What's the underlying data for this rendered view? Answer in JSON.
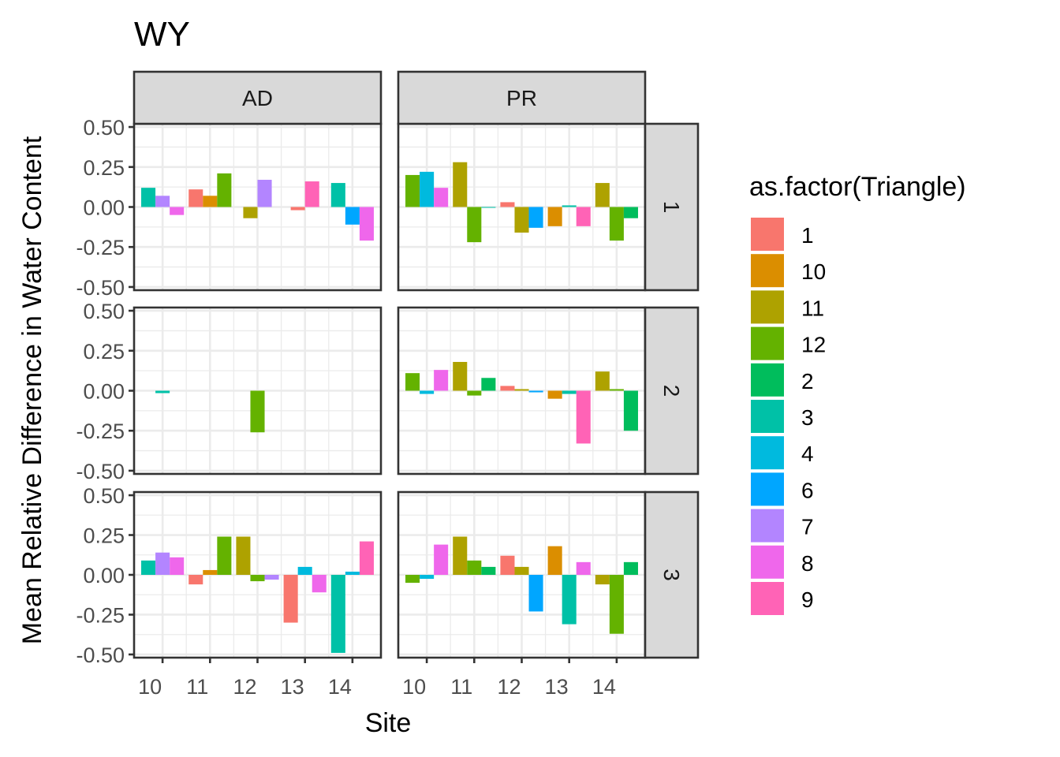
{
  "chart_data": {
    "type": "bar",
    "title": "WY",
    "xlabel": "Site",
    "ylabel": "Mean Relative Difference in Water Content",
    "ylim": [
      -0.52,
      0.52
    ],
    "yticks": [
      "-0.50",
      "-0.25",
      "0.00",
      "0.25",
      "0.50"
    ],
    "ytick_values": [
      -0.5,
      -0.25,
      0,
      0.25,
      0.5
    ],
    "xticks": [
      "10",
      "11",
      "12",
      "13",
      "14"
    ],
    "grid": true,
    "legend_title": "as.factor(Triangle)",
    "legend_position": "right",
    "legend": [
      {
        "key": "1",
        "color": "#F8766D"
      },
      {
        "key": "10",
        "color": "#DB8E00"
      },
      {
        "key": "11",
        "color": "#AEA200"
      },
      {
        "key": "12",
        "color": "#64B200"
      },
      {
        "key": "2",
        "color": "#00BD5C"
      },
      {
        "key": "3",
        "color": "#00C1A7"
      },
      {
        "key": "4",
        "color": "#00BADE"
      },
      {
        "key": "6",
        "color": "#00A6FF"
      },
      {
        "key": "7",
        "color": "#B385FF"
      },
      {
        "key": "8",
        "color": "#EF67EB"
      },
      {
        "key": "9",
        "color": "#FF63B6"
      }
    ],
    "facet_columns": [
      "AD",
      "PR"
    ],
    "facet_rows": [
      "1",
      "2",
      "3"
    ],
    "panels": [
      {
        "col": "AD",
        "row": "1",
        "sites": [
          {
            "site": "10",
            "bars": [
              {
                "tri": "3",
                "v": 0.12
              },
              {
                "tri": "7",
                "v": 0.07
              },
              {
                "tri": "8",
                "v": -0.05
              }
            ]
          },
          {
            "site": "11",
            "bars": [
              {
                "tri": "1",
                "v": 0.11
              },
              {
                "tri": "10",
                "v": 0.07
              },
              {
                "tri": "12",
                "v": 0.21
              }
            ]
          },
          {
            "site": "12",
            "bars": [
              {
                "tri": "11",
                "v": -0.07
              },
              {
                "tri": "7",
                "v": 0.17
              }
            ]
          },
          {
            "site": "13",
            "bars": [
              {
                "tri": "1",
                "v": -0.02
              },
              {
                "tri": "9",
                "v": 0.16
              }
            ]
          },
          {
            "site": "14",
            "bars": [
              {
                "tri": "3",
                "v": 0.15
              },
              {
                "tri": "6",
                "v": -0.11
              },
              {
                "tri": "8",
                "v": -0.21
              }
            ]
          }
        ]
      },
      {
        "col": "PR",
        "row": "1",
        "sites": [
          {
            "site": "10",
            "bars": [
              {
                "tri": "12",
                "v": 0.2
              },
              {
                "tri": "4",
                "v": 0.22
              },
              {
                "tri": "8",
                "v": 0.12
              }
            ]
          },
          {
            "site": "11",
            "bars": [
              {
                "tri": "11",
                "v": 0.28
              },
              {
                "tri": "12",
                "v": -0.22
              },
              {
                "tri": "3",
                "v": -0.005
              }
            ]
          },
          {
            "site": "12",
            "bars": [
              {
                "tri": "1",
                "v": 0.03
              },
              {
                "tri": "11",
                "v": -0.16
              },
              {
                "tri": "6",
                "v": -0.13
              }
            ]
          },
          {
            "site": "13",
            "bars": [
              {
                "tri": "10",
                "v": -0.12
              },
              {
                "tri": "3",
                "v": 0.01
              },
              {
                "tri": "9",
                "v": -0.12
              }
            ]
          },
          {
            "site": "14",
            "bars": [
              {
                "tri": "11",
                "v": 0.15
              },
              {
                "tri": "12",
                "v": -0.21
              },
              {
                "tri": "2",
                "v": -0.07
              }
            ]
          }
        ]
      },
      {
        "col": "AD",
        "row": "2",
        "sites": [
          {
            "site": "10",
            "bars": [
              {
                "tri": "3",
                "v": -0.015
              }
            ]
          },
          {
            "site": "12",
            "bars": [
              {
                "tri": "12",
                "v": -0.26
              }
            ]
          }
        ]
      },
      {
        "col": "PR",
        "row": "2",
        "sites": [
          {
            "site": "10",
            "bars": [
              {
                "tri": "12",
                "v": 0.11
              },
              {
                "tri": "4",
                "v": -0.02
              },
              {
                "tri": "8",
                "v": 0.13
              }
            ]
          },
          {
            "site": "11",
            "bars": [
              {
                "tri": "11",
                "v": 0.18
              },
              {
                "tri": "12",
                "v": -0.03
              },
              {
                "tri": "2",
                "v": 0.08
              }
            ]
          },
          {
            "site": "12",
            "bars": [
              {
                "tri": "1",
                "v": 0.03
              },
              {
                "tri": "11",
                "v": 0.01
              },
              {
                "tri": "6",
                "v": -0.01
              }
            ]
          },
          {
            "site": "13",
            "bars": [
              {
                "tri": "10",
                "v": -0.05
              },
              {
                "tri": "3",
                "v": -0.02
              },
              {
                "tri": "9",
                "v": -0.33
              }
            ]
          },
          {
            "site": "14",
            "bars": [
              {
                "tri": "11",
                "v": 0.12
              },
              {
                "tri": "12",
                "v": 0.01
              },
              {
                "tri": "2",
                "v": -0.25
              }
            ]
          }
        ]
      },
      {
        "col": "AD",
        "row": "3",
        "sites": [
          {
            "site": "10",
            "bars": [
              {
                "tri": "3",
                "v": 0.09
              },
              {
                "tri": "7",
                "v": 0.14
              },
              {
                "tri": "8",
                "v": 0.11
              }
            ]
          },
          {
            "site": "11",
            "bars": [
              {
                "tri": "1",
                "v": -0.06
              },
              {
                "tri": "10",
                "v": 0.03
              },
              {
                "tri": "12",
                "v": 0.24
              }
            ]
          },
          {
            "site": "12",
            "bars": [
              {
                "tri": "11",
                "v": 0.24
              },
              {
                "tri": "12",
                "v": -0.04
              },
              {
                "tri": "7",
                "v": -0.03
              }
            ]
          },
          {
            "site": "13",
            "bars": [
              {
                "tri": "1",
                "v": -0.3
              },
              {
                "tri": "4",
                "v": 0.05
              },
              {
                "tri": "8",
                "v": -0.11
              }
            ]
          },
          {
            "site": "14",
            "bars": [
              {
                "tri": "3",
                "v": -0.49
              },
              {
                "tri": "4",
                "v": 0.02
              },
              {
                "tri": "9",
                "v": 0.21
              }
            ]
          }
        ]
      },
      {
        "col": "PR",
        "row": "3",
        "sites": [
          {
            "site": "10",
            "bars": [
              {
                "tri": "12",
                "v": -0.05
              },
              {
                "tri": "4",
                "v": -0.025
              },
              {
                "tri": "8",
                "v": 0.19
              }
            ]
          },
          {
            "site": "11",
            "bars": [
              {
                "tri": "11",
                "v": 0.24
              },
              {
                "tri": "12",
                "v": 0.09
              },
              {
                "tri": "2",
                "v": 0.05
              }
            ]
          },
          {
            "site": "12",
            "bars": [
              {
                "tri": "1",
                "v": 0.12
              },
              {
                "tri": "11",
                "v": 0.05
              },
              {
                "tri": "6",
                "v": -0.23
              }
            ]
          },
          {
            "site": "13",
            "bars": [
              {
                "tri": "10",
                "v": 0.18
              },
              {
                "tri": "3",
                "v": -0.31
              },
              {
                "tri": "8",
                "v": 0.08
              }
            ]
          },
          {
            "site": "14",
            "bars": [
              {
                "tri": "11",
                "v": -0.06
              },
              {
                "tri": "12",
                "v": -0.37
              },
              {
                "tri": "2",
                "v": 0.08
              }
            ]
          }
        ]
      }
    ]
  }
}
